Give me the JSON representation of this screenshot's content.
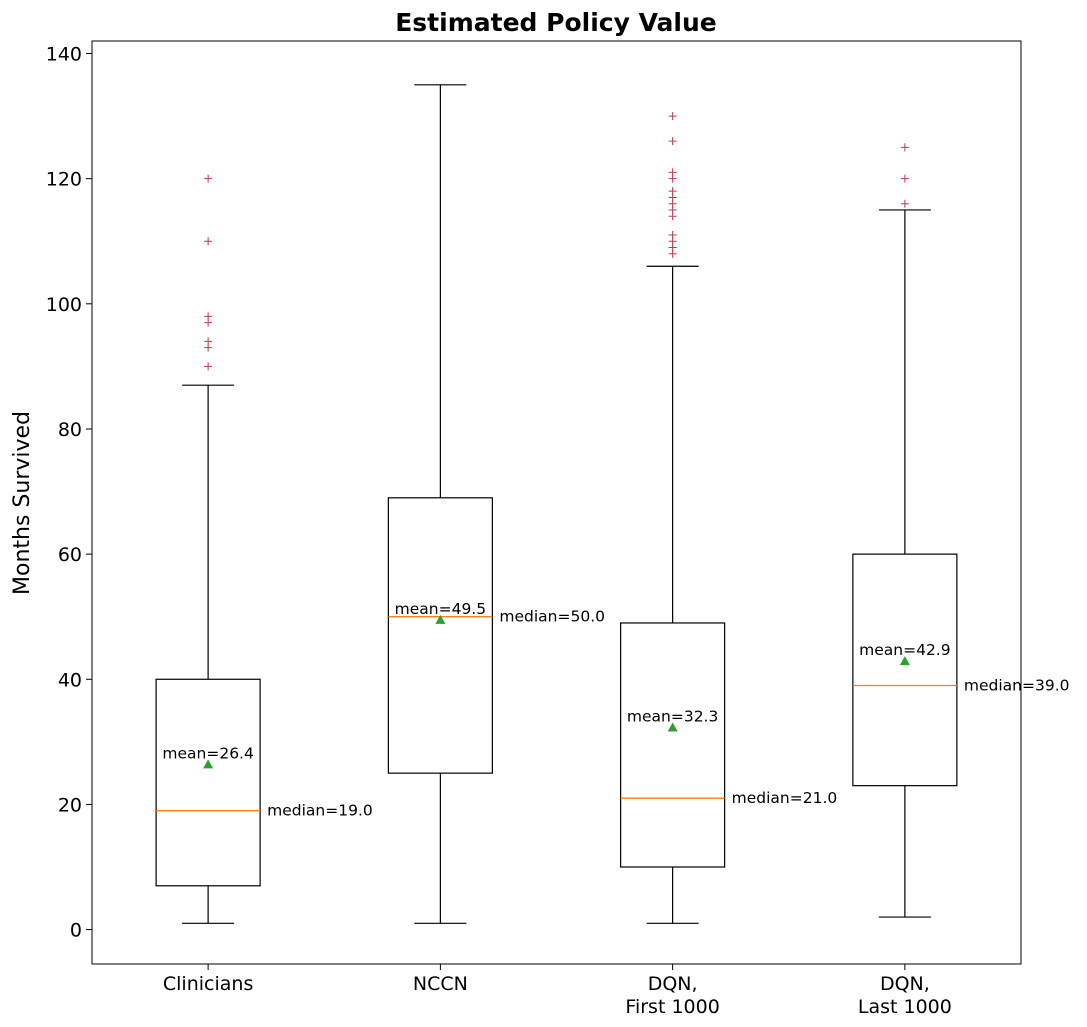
{
  "chart_data": {
    "type": "boxplot",
    "title": "Estimated Policy Value",
    "xlabel": "",
    "ylabel": "Months Survived",
    "ylim": [
      -5.5,
      142
    ],
    "yticks": [
      0,
      20,
      40,
      60,
      80,
      100,
      120,
      140
    ],
    "categories": [
      {
        "lines": [
          "Clinicians"
        ]
      },
      {
        "lines": [
          "NCCN"
        ]
      },
      {
        "lines": [
          "DQN,",
          "First 1000"
        ]
      },
      {
        "lines": [
          "DQN,",
          "Last 1000"
        ]
      }
    ],
    "boxes": [
      {
        "whisker_low": 1,
        "q1": 7,
        "median": 19.0,
        "q3": 40,
        "whisker_high": 87,
        "mean": 26.4,
        "outliers": [
          90,
          93,
          94,
          97,
          98,
          110,
          120
        ],
        "mean_label": "mean=26.4",
        "median_label": "median=19.0"
      },
      {
        "whisker_low": 1,
        "q1": 25,
        "median": 50.0,
        "q3": 69,
        "whisker_high": 135,
        "mean": 49.5,
        "outliers": [],
        "mean_label": "mean=49.5",
        "median_label": "median=50.0"
      },
      {
        "whisker_low": 1,
        "q1": 10,
        "median": 21.0,
        "q3": 49,
        "whisker_high": 106,
        "mean": 32.3,
        "outliers": [
          108,
          109,
          110,
          111,
          114,
          115,
          116,
          117,
          118,
          120,
          121,
          126,
          130
        ],
        "mean_label": "mean=32.3",
        "median_label": "median=21.0"
      },
      {
        "whisker_low": 2,
        "q1": 23,
        "median": 39.0,
        "q3": 60,
        "whisker_high": 115,
        "mean": 42.9,
        "outliers": [
          116,
          120,
          125
        ],
        "mean_label": "mean=42.9",
        "median_label": "median=39.0"
      }
    ],
    "colors": {
      "box": "#000000",
      "median": "#ff7f0e",
      "mean": "#2ca02c",
      "outlier": "#c0394b"
    }
  }
}
